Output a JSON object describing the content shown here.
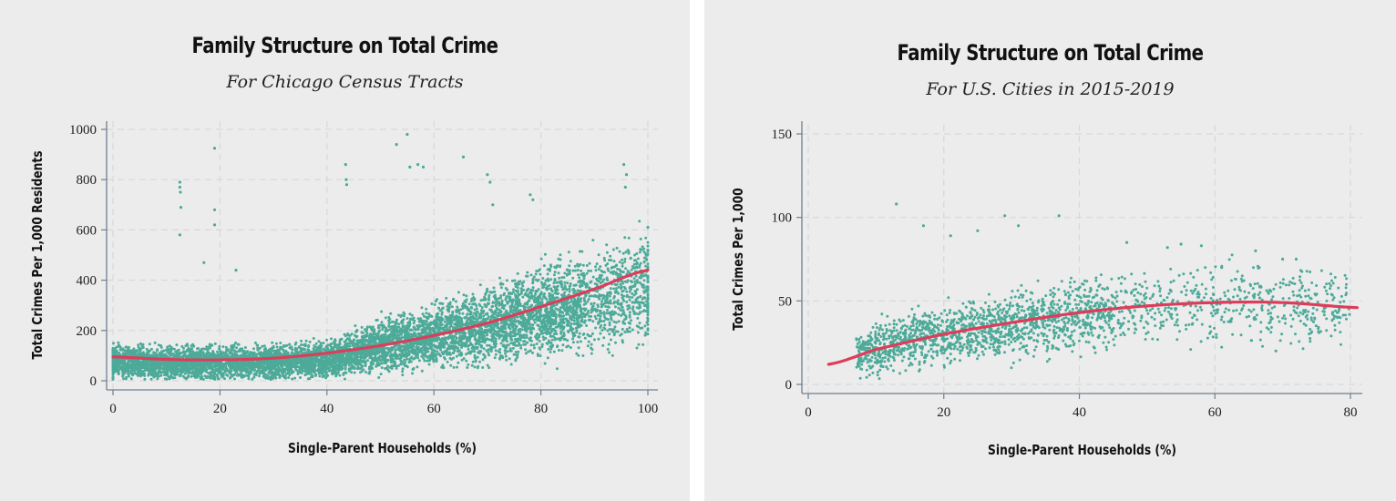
{
  "chart_data": [
    {
      "type": "scatter",
      "title": "Family Structure on Total Crime",
      "subtitle": "For Chicago Census Tracts",
      "xlabel": "Single-Parent Households (%)",
      "ylabel": "Total Crimes Per 1,000 Residents",
      "xlim": [
        0,
        100
      ],
      "ylim": [
        0,
        1000
      ],
      "x_ticks": [
        0,
        20,
        40,
        60,
        80,
        100
      ],
      "y_ticks": [
        0,
        200,
        400,
        600,
        800,
        1000
      ],
      "grid": true,
      "point_color": "#4daa99",
      "fit_color": "#dc3d5a",
      "fit_line": {
        "x": [
          0,
          10,
          20,
          30,
          40,
          50,
          60,
          70,
          80,
          90,
          100
        ],
        "y": [
          95,
          85,
          83,
          90,
          110,
          140,
          180,
          230,
          295,
          365,
          440
        ]
      },
      "scatter_trend": {
        "x": [
          0,
          10,
          20,
          30,
          40,
          45,
          50,
          60,
          70,
          80,
          90,
          100
        ],
        "y": [
          75,
          70,
          70,
          75,
          85,
          110,
          140,
          170,
          220,
          270,
          320,
          380
        ]
      },
      "outliers": {
        "x": [
          12.5,
          12.5,
          12.6,
          12.7,
          12.5,
          19,
          19,
          19,
          43.5,
          43.6,
          43.7,
          53,
          55,
          55.5,
          57,
          58,
          65.5,
          70,
          70.5,
          71,
          78,
          78.5,
          95.5,
          96,
          95.8,
          100,
          100,
          99.8,
          17,
          23
        ],
        "y": [
          790,
          770,
          750,
          690,
          580,
          925,
          680,
          620,
          860,
          800,
          780,
          940,
          980,
          850,
          860,
          850,
          890,
          820,
          790,
          700,
          740,
          720,
          860,
          820,
          770,
          610,
          520,
          500,
          470,
          440
        ]
      }
    },
    {
      "type": "scatter",
      "title": "Family Structure on Total Crime",
      "subtitle": "For U.S. Cities in 2015-2019",
      "xlabel": "Single-Parent Households (%)",
      "ylabel": "Total Crimes Per 1,000",
      "xlim": [
        0,
        80
      ],
      "ylim": [
        0,
        150
      ],
      "x_ticks": [
        0,
        20,
        40,
        60,
        80
      ],
      "y_ticks": [
        0,
        50,
        100,
        150
      ],
      "grid": true,
      "point_color": "#4daa99",
      "fit_color": "#dc3d5a",
      "fit_line": {
        "x": [
          3,
          10,
          20,
          30,
          40,
          50,
          60,
          70,
          81
        ],
        "y": [
          12,
          21,
          30,
          37,
          43,
          47,
          49,
          49,
          46
        ]
      },
      "scatter_trend": {
        "x": [
          5,
          10,
          20,
          30,
          40,
          50,
          60,
          70,
          80
        ],
        "y": [
          15,
          22,
          29,
          35,
          42,
          47,
          48,
          48,
          46
        ]
      },
      "outliers": {
        "x": [
          13,
          17,
          21,
          25,
          29,
          31,
          37,
          47,
          53,
          55,
          58,
          66,
          70,
          72,
          61,
          69
        ],
        "y": [
          108,
          95,
          89,
          92,
          101,
          95,
          101,
          85,
          82,
          84,
          83,
          80,
          75,
          75,
          70,
          20
        ]
      }
    }
  ]
}
